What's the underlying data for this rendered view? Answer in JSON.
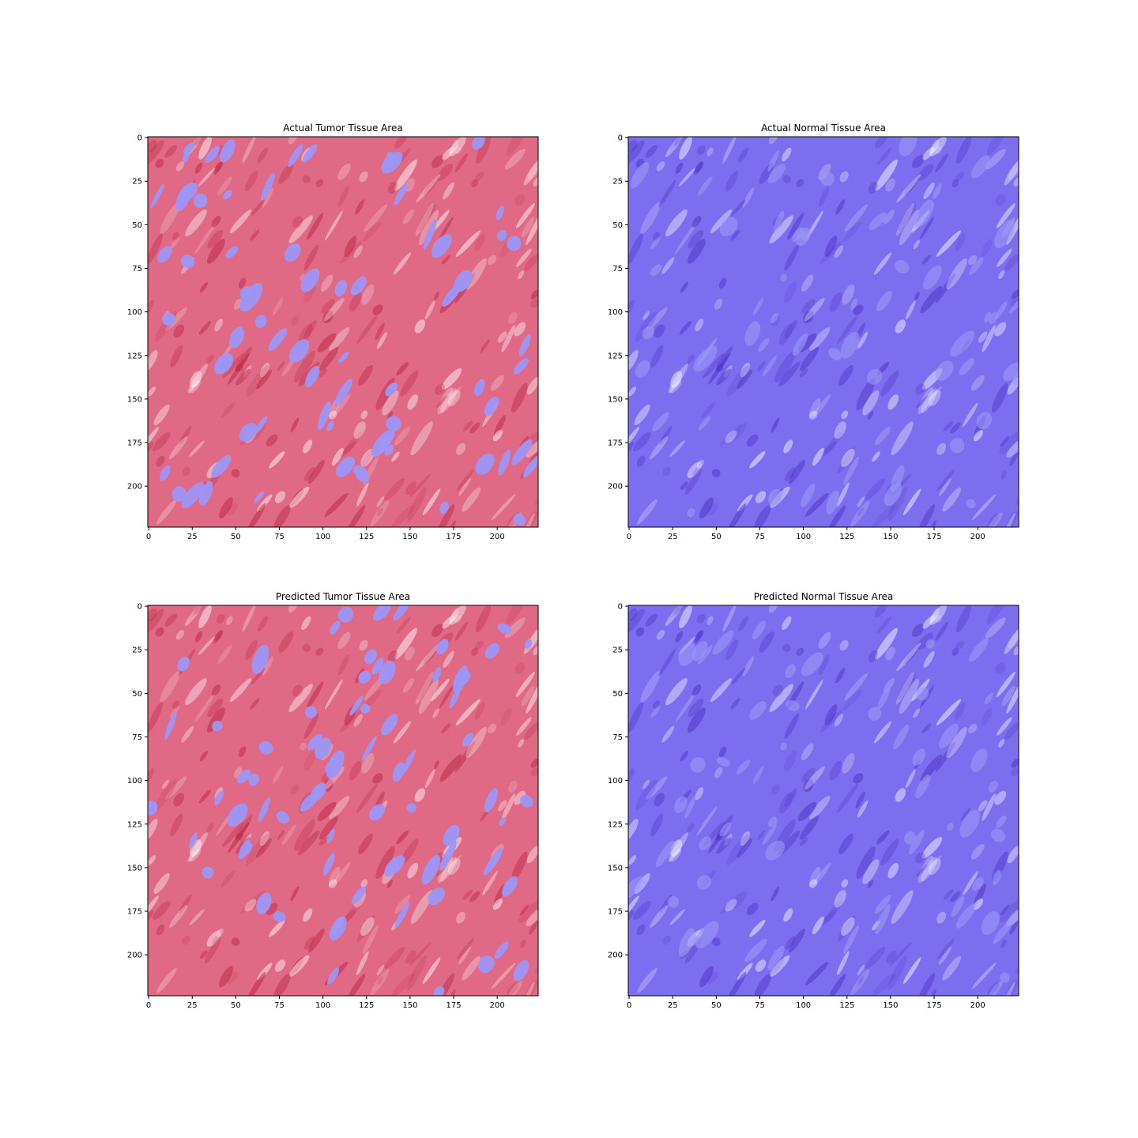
{
  "figure": {
    "panels": [
      {
        "title": "Actual Tumor Tissue Area",
        "tissue_color": "#e06a86",
        "overlay_color": "#9c97f6",
        "dark_color": "#b8223f",
        "xticks": [
          "0",
          "25",
          "50",
          "75",
          "100",
          "125",
          "150",
          "175",
          "200"
        ],
        "yticks": [
          "0",
          "25",
          "50",
          "75",
          "100",
          "125",
          "150",
          "175",
          "200"
        ]
      },
      {
        "title": "Actual Normal Tissue Area",
        "tissue_color": "#7d6ef0",
        "overlay_color": "#9c97f6",
        "dark_color": "#4a2fc0",
        "xticks": [
          "0",
          "25",
          "50",
          "75",
          "100",
          "125",
          "150",
          "175",
          "200"
        ],
        "yticks": [
          "0",
          "25",
          "50",
          "75",
          "100",
          "125",
          "150",
          "175",
          "200"
        ]
      },
      {
        "title": "Predicted Tumor Tissue Area",
        "tissue_color": "#e06a86",
        "overlay_color": "#9c97f6",
        "dark_color": "#b8223f",
        "xticks": [
          "0",
          "25",
          "50",
          "75",
          "100",
          "125",
          "150",
          "175",
          "200"
        ],
        "yticks": [
          "0",
          "25",
          "50",
          "75",
          "100",
          "125",
          "150",
          "175",
          "200"
        ]
      },
      {
        "title": "Predicted Normal Tissue Area",
        "tissue_color": "#7d6ef0",
        "overlay_color": "#9c97f6",
        "dark_color": "#4a2fc0",
        "xticks": [
          "0",
          "25",
          "50",
          "75",
          "100",
          "125",
          "150",
          "175",
          "200"
        ],
        "yticks": [
          "0",
          "25",
          "50",
          "75",
          "100",
          "125",
          "150",
          "175",
          "200"
        ]
      }
    ]
  }
}
